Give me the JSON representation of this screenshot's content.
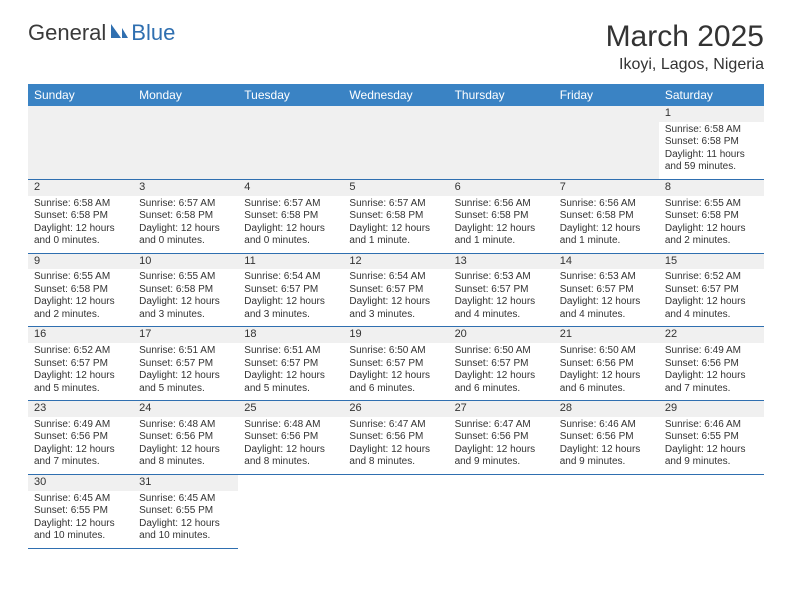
{
  "logo": {
    "text1": "General",
    "text2": "Blue"
  },
  "title": "March 2025",
  "location": "Ikoyi, Lagos, Nigeria",
  "colors": {
    "header_bg": "#3a83c4",
    "header_text": "#ffffff",
    "row_border": "#2f6fb0",
    "daynum_bg": "#f0f0f0",
    "logo_blue": "#2f6fb0"
  },
  "weekdays": [
    "Sunday",
    "Monday",
    "Tuesday",
    "Wednesday",
    "Thursday",
    "Friday",
    "Saturday"
  ],
  "weeks": [
    [
      null,
      null,
      null,
      null,
      null,
      null,
      {
        "n": "1",
        "sr": "Sunrise: 6:58 AM",
        "ss": "Sunset: 6:58 PM",
        "dl": "Daylight: 11 hours and 59 minutes."
      }
    ],
    [
      {
        "n": "2",
        "sr": "Sunrise: 6:58 AM",
        "ss": "Sunset: 6:58 PM",
        "dl": "Daylight: 12 hours and 0 minutes."
      },
      {
        "n": "3",
        "sr": "Sunrise: 6:57 AM",
        "ss": "Sunset: 6:58 PM",
        "dl": "Daylight: 12 hours and 0 minutes."
      },
      {
        "n": "4",
        "sr": "Sunrise: 6:57 AM",
        "ss": "Sunset: 6:58 PM",
        "dl": "Daylight: 12 hours and 0 minutes."
      },
      {
        "n": "5",
        "sr": "Sunrise: 6:57 AM",
        "ss": "Sunset: 6:58 PM",
        "dl": "Daylight: 12 hours and 1 minute."
      },
      {
        "n": "6",
        "sr": "Sunrise: 6:56 AM",
        "ss": "Sunset: 6:58 PM",
        "dl": "Daylight: 12 hours and 1 minute."
      },
      {
        "n": "7",
        "sr": "Sunrise: 6:56 AM",
        "ss": "Sunset: 6:58 PM",
        "dl": "Daylight: 12 hours and 1 minute."
      },
      {
        "n": "8",
        "sr": "Sunrise: 6:55 AM",
        "ss": "Sunset: 6:58 PM",
        "dl": "Daylight: 12 hours and 2 minutes."
      }
    ],
    [
      {
        "n": "9",
        "sr": "Sunrise: 6:55 AM",
        "ss": "Sunset: 6:58 PM",
        "dl": "Daylight: 12 hours and 2 minutes."
      },
      {
        "n": "10",
        "sr": "Sunrise: 6:55 AM",
        "ss": "Sunset: 6:58 PM",
        "dl": "Daylight: 12 hours and 3 minutes."
      },
      {
        "n": "11",
        "sr": "Sunrise: 6:54 AM",
        "ss": "Sunset: 6:57 PM",
        "dl": "Daylight: 12 hours and 3 minutes."
      },
      {
        "n": "12",
        "sr": "Sunrise: 6:54 AM",
        "ss": "Sunset: 6:57 PM",
        "dl": "Daylight: 12 hours and 3 minutes."
      },
      {
        "n": "13",
        "sr": "Sunrise: 6:53 AM",
        "ss": "Sunset: 6:57 PM",
        "dl": "Daylight: 12 hours and 4 minutes."
      },
      {
        "n": "14",
        "sr": "Sunrise: 6:53 AM",
        "ss": "Sunset: 6:57 PM",
        "dl": "Daylight: 12 hours and 4 minutes."
      },
      {
        "n": "15",
        "sr": "Sunrise: 6:52 AM",
        "ss": "Sunset: 6:57 PM",
        "dl": "Daylight: 12 hours and 4 minutes."
      }
    ],
    [
      {
        "n": "16",
        "sr": "Sunrise: 6:52 AM",
        "ss": "Sunset: 6:57 PM",
        "dl": "Daylight: 12 hours and 5 minutes."
      },
      {
        "n": "17",
        "sr": "Sunrise: 6:51 AM",
        "ss": "Sunset: 6:57 PM",
        "dl": "Daylight: 12 hours and 5 minutes."
      },
      {
        "n": "18",
        "sr": "Sunrise: 6:51 AM",
        "ss": "Sunset: 6:57 PM",
        "dl": "Daylight: 12 hours and 5 minutes."
      },
      {
        "n": "19",
        "sr": "Sunrise: 6:50 AM",
        "ss": "Sunset: 6:57 PM",
        "dl": "Daylight: 12 hours and 6 minutes."
      },
      {
        "n": "20",
        "sr": "Sunrise: 6:50 AM",
        "ss": "Sunset: 6:57 PM",
        "dl": "Daylight: 12 hours and 6 minutes."
      },
      {
        "n": "21",
        "sr": "Sunrise: 6:50 AM",
        "ss": "Sunset: 6:56 PM",
        "dl": "Daylight: 12 hours and 6 minutes."
      },
      {
        "n": "22",
        "sr": "Sunrise: 6:49 AM",
        "ss": "Sunset: 6:56 PM",
        "dl": "Daylight: 12 hours and 7 minutes."
      }
    ],
    [
      {
        "n": "23",
        "sr": "Sunrise: 6:49 AM",
        "ss": "Sunset: 6:56 PM",
        "dl": "Daylight: 12 hours and 7 minutes."
      },
      {
        "n": "24",
        "sr": "Sunrise: 6:48 AM",
        "ss": "Sunset: 6:56 PM",
        "dl": "Daylight: 12 hours and 8 minutes."
      },
      {
        "n": "25",
        "sr": "Sunrise: 6:48 AM",
        "ss": "Sunset: 6:56 PM",
        "dl": "Daylight: 12 hours and 8 minutes."
      },
      {
        "n": "26",
        "sr": "Sunrise: 6:47 AM",
        "ss": "Sunset: 6:56 PM",
        "dl": "Daylight: 12 hours and 8 minutes."
      },
      {
        "n": "27",
        "sr": "Sunrise: 6:47 AM",
        "ss": "Sunset: 6:56 PM",
        "dl": "Daylight: 12 hours and 9 minutes."
      },
      {
        "n": "28",
        "sr": "Sunrise: 6:46 AM",
        "ss": "Sunset: 6:56 PM",
        "dl": "Daylight: 12 hours and 9 minutes."
      },
      {
        "n": "29",
        "sr": "Sunrise: 6:46 AM",
        "ss": "Sunset: 6:55 PM",
        "dl": "Daylight: 12 hours and 9 minutes."
      }
    ],
    [
      {
        "n": "30",
        "sr": "Sunrise: 6:45 AM",
        "ss": "Sunset: 6:55 PM",
        "dl": "Daylight: 12 hours and 10 minutes."
      },
      {
        "n": "31",
        "sr": "Sunrise: 6:45 AM",
        "ss": "Sunset: 6:55 PM",
        "dl": "Daylight: 12 hours and 10 minutes."
      },
      null,
      null,
      null,
      null,
      null
    ]
  ]
}
